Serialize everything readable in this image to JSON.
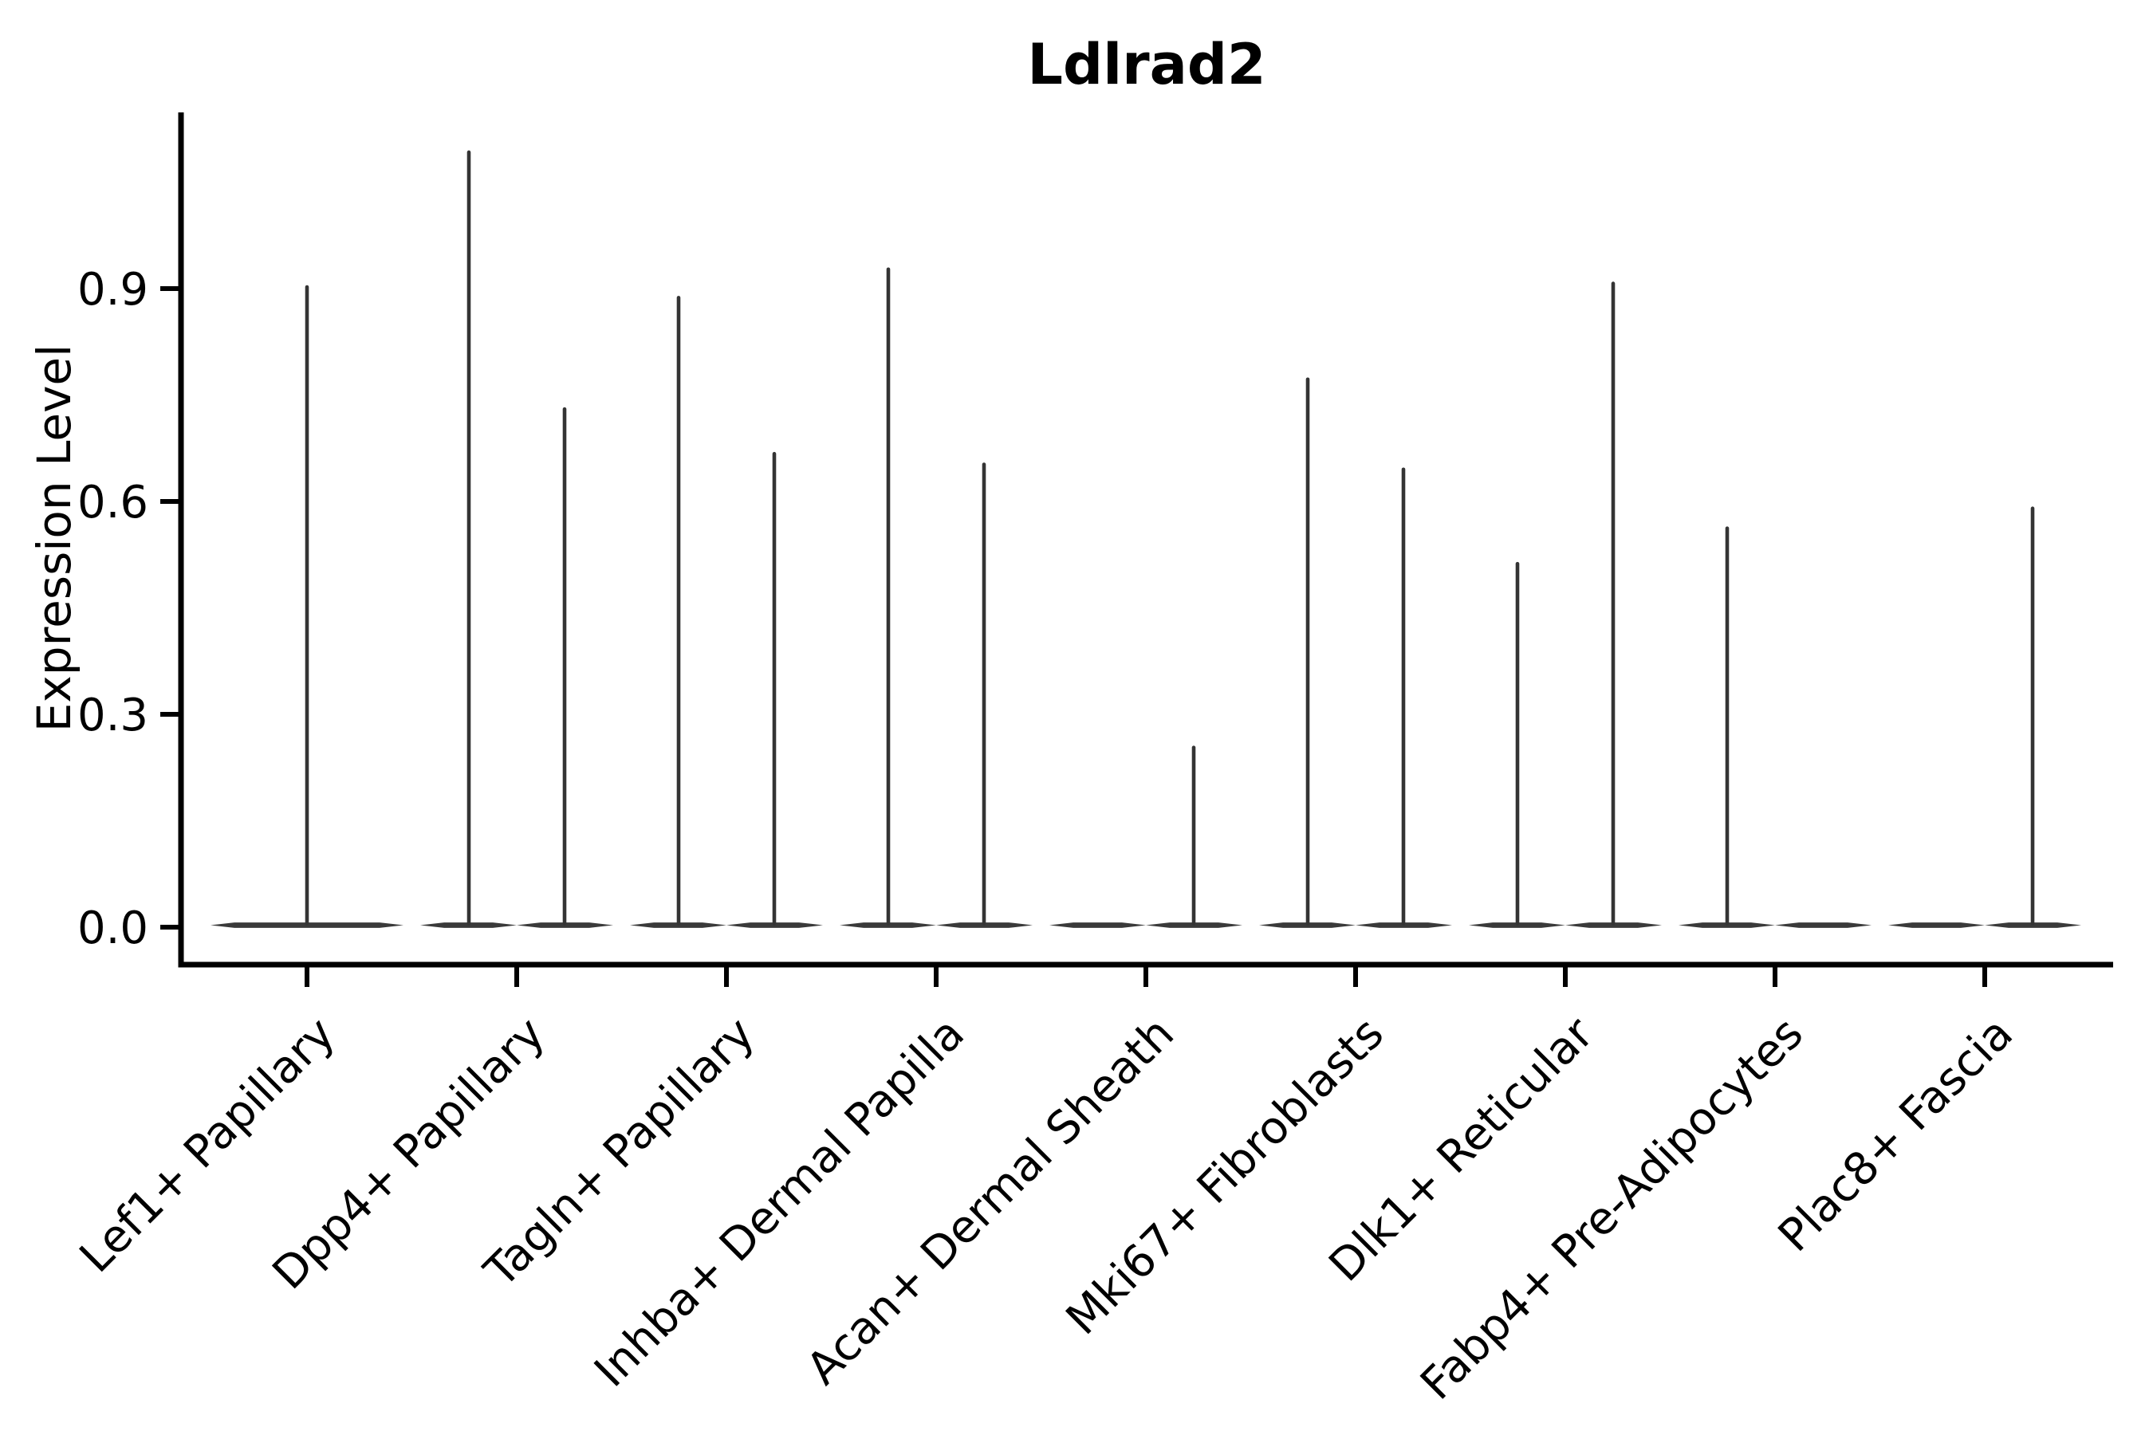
{
  "figure": {
    "title": "Ldlrad2",
    "ylabel": "Expression Level"
  },
  "chart_data": {
    "type": "violin",
    "title": "Ldlrad2",
    "xlabel": "",
    "ylabel": "Expression Level",
    "categories": [
      "Lef1+ Papillary",
      "Dpp4+ Papillary",
      "Tagln+ Papillary",
      "Inhba+ Dermal Papilla",
      "Acan+ Dermal Sheath",
      "Mki67+ Fibroblasts",
      "Dlk1+ Reticular",
      "Fabp4+ Pre-Adipocytes",
      "Plac8+ Fascia"
    ],
    "ytick_values": [
      0.0,
      0.3,
      0.6,
      0.9
    ],
    "ytick_labels": [
      "0.0",
      "0.3",
      "0.6",
      "0.9"
    ],
    "ylim": [
      -0.055,
      1.15
    ],
    "x_label_rotation_deg": 45,
    "grid": false,
    "legend": "none",
    "violins": [
      {
        "category": "Lef1+ Papillary",
        "layout": "single",
        "spikes": [
          {
            "position": "center",
            "max": 0.905
          }
        ]
      },
      {
        "category": "Dpp4+ Papillary",
        "layout": "split",
        "spikes": [
          {
            "position": "left",
            "max": 1.095
          },
          {
            "position": "right",
            "max": 0.733
          }
        ]
      },
      {
        "category": "Tagln+ Papillary",
        "layout": "split",
        "spikes": [
          {
            "position": "left",
            "max": 0.89
          },
          {
            "position": "right",
            "max": 0.67
          }
        ]
      },
      {
        "category": "Inhba+ Dermal Papilla",
        "layout": "split",
        "spikes": [
          {
            "position": "left",
            "max": 0.93
          },
          {
            "position": "right",
            "max": 0.655
          }
        ]
      },
      {
        "category": "Acan+ Dermal Sheath",
        "layout": "split",
        "spikes": [
          {
            "position": "right",
            "max": 0.256
          }
        ]
      },
      {
        "category": "Mki67+ Fibroblasts",
        "layout": "split",
        "spikes": [
          {
            "position": "left",
            "max": 0.775
          },
          {
            "position": "right",
            "max": 0.648
          }
        ]
      },
      {
        "category": "Dlk1+ Reticular",
        "layout": "split",
        "spikes": [
          {
            "position": "left",
            "max": 0.515
          },
          {
            "position": "right",
            "max": 0.91
          }
        ]
      },
      {
        "category": "Fabp4+ Pre-Adipocytes",
        "layout": "split",
        "spikes": [
          {
            "position": "left",
            "max": 0.565
          }
        ]
      },
      {
        "category": "Plac8+ Fascia",
        "layout": "split",
        "spikes": [
          {
            "position": "right",
            "max": 0.593
          }
        ]
      }
    ],
    "colors": {
      "violin_fill": "#3a3a3a",
      "spike_stroke": "#343434",
      "axis": "#000000",
      "text": "#000000",
      "background": "#ffffff"
    }
  }
}
